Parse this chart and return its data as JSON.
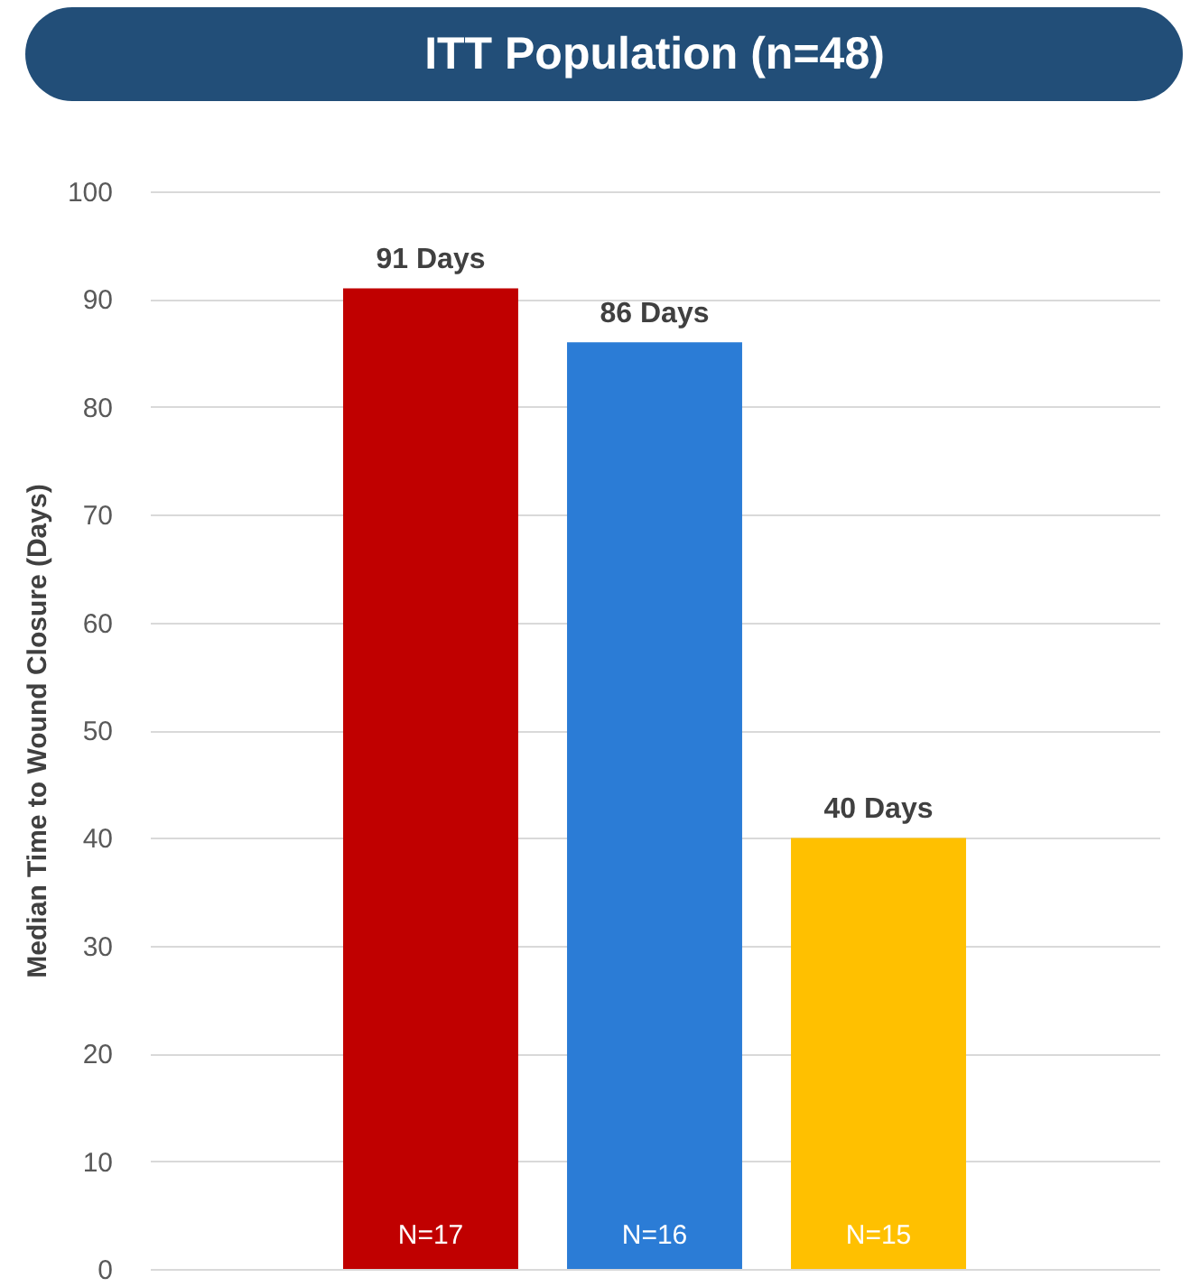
{
  "chart_data": {
    "type": "bar",
    "title": "ITT Population (n=48)",
    "ylabel": "Median Time to Wound Closure (Days)",
    "categories": [
      null,
      null,
      null
    ],
    "values": [
      91,
      86,
      40
    ],
    "colors": [
      "#c00000",
      "#2b7cd6",
      "#ffc000"
    ],
    "value_labels": [
      "91 Days",
      "86 Days",
      "40 Days"
    ],
    "annotations": [
      "N=17",
      "N=16",
      "N=15"
    ],
    "ylim": [
      0,
      100
    ],
    "yticks": [
      0,
      10,
      20,
      30,
      40,
      50,
      60,
      70,
      80,
      90,
      100
    ],
    "grid": "y",
    "tick_labels": "y"
  }
}
